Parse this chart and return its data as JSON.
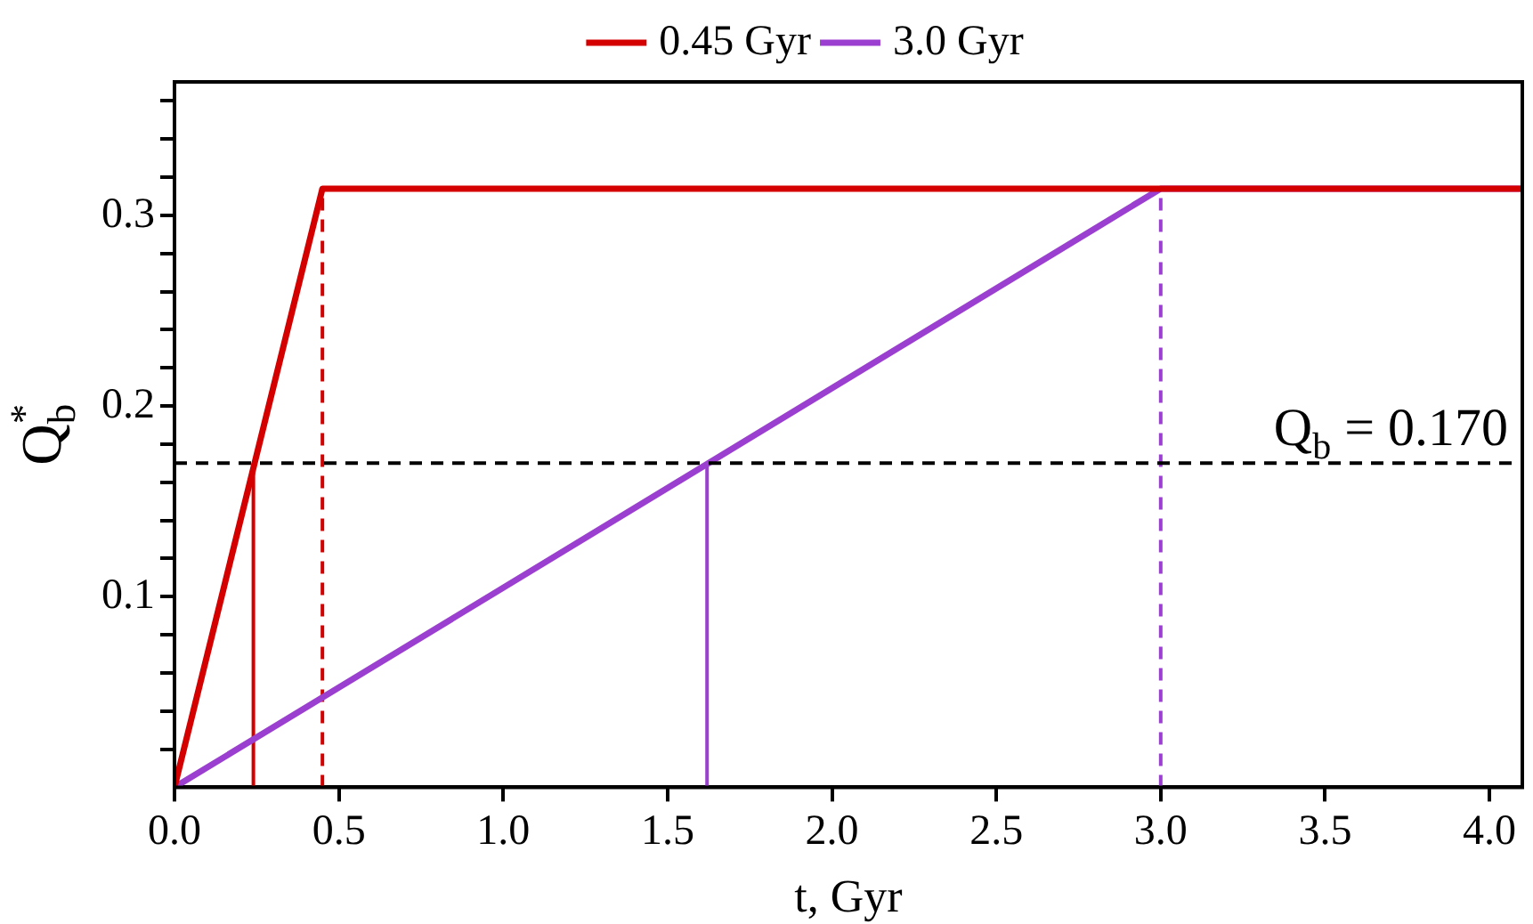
{
  "chart_data": {
    "type": "line",
    "xlabel": "t, Gyr",
    "ylabel": "Q$_{b}$$^{*}$",
    "xlim": [
      0,
      4.1
    ],
    "ylim": [
      0,
      0.37
    ],
    "xticks": [
      {
        "value": 0,
        "label": "0.0"
      },
      {
        "value": 0.5,
        "label": "0.5"
      },
      {
        "value": 1,
        "label": "1.0"
      },
      {
        "value": 1.5,
        "label": "1.5"
      },
      {
        "value": 2,
        "label": "2.0"
      },
      {
        "value": 2.5,
        "label": "2.5"
      },
      {
        "value": 3,
        "label": "3.0"
      },
      {
        "value": 3.5,
        "label": "3.5"
      },
      {
        "value": 4,
        "label": "4.0"
      }
    ],
    "yticks": [
      {
        "value": 0.02,
        "label": null
      },
      {
        "value": 0.04,
        "label": null
      },
      {
        "value": 0.06,
        "label": null
      },
      {
        "value": 0.08,
        "label": null
      },
      0.1,
      {
        "value": 0.12,
        "label": null
      },
      {
        "value": 0.14,
        "label": null
      },
      {
        "value": 0.16,
        "label": null
      },
      {
        "value": 0.18,
        "label": null
      },
      0.2,
      {
        "value": 0.22,
        "label": null
      },
      {
        "value": 0.24,
        "label": null
      },
      {
        "value": 0.26,
        "label": null
      },
      {
        "value": 0.28,
        "label": null
      },
      0.3,
      {
        "value": 0.32,
        "label": null
      },
      {
        "value": 0.34,
        "label": null
      },
      {
        "value": 0.36,
        "label": null
      }
    ],
    "grid": false,
    "legend": "top",
    "series": [
      {
        "name": "0.45 Gyr",
        "color": "#d40000",
        "x": [
          0,
          0.45,
          4.1
        ],
        "values": [
          0,
          0.314,
          0.314
        ]
      },
      {
        "name": "3.0 Gyr",
        "color": "#9b3fd0",
        "x": [
          0,
          3.0,
          4.1
        ],
        "values": [
          0,
          0.314,
          0.314
        ]
      },
      {
        "color": "#d40000",
        "x": [
          0.24,
          0.24
        ],
        "values": [
          0,
          0.17
        ]
      },
      {
        "color": "#d40000",
        "x": [
          0.45,
          0.45
        ],
        "values": [
          0,
          0.314
        ],
        "line_style": "dashed"
      },
      {
        "color": "#9b3fd0",
        "x": [
          1.62,
          1.62
        ],
        "values": [
          0,
          0.17
        ]
      },
      {
        "color": "#9b3fd0",
        "x": [
          3.0,
          3.0
        ],
        "values": [
          0,
          0.314
        ],
        "line_style": "dashed"
      }
    ],
    "ref_lines": [
      {
        "axis": "y",
        "value": 0.17,
        "label": "Q$_{b}$ = 0.170",
        "color": "#000000",
        "line_style": "dashed"
      }
    ]
  }
}
